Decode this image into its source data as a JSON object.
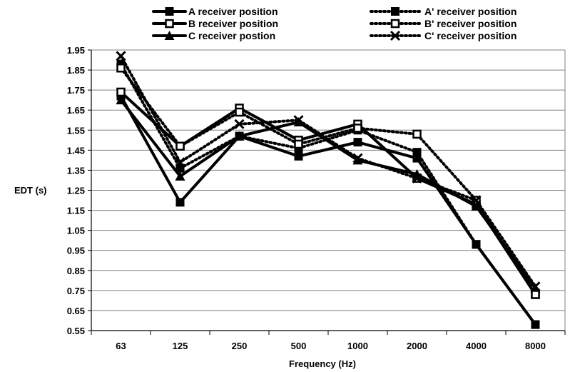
{
  "chart_data": {
    "type": "line",
    "xlabel": "Frequency (Hz)",
    "ylabel": "EDT (s)",
    "categories": [
      "63",
      "125",
      "250",
      "500",
      "1000",
      "2000",
      "4000",
      "8000"
    ],
    "ylim": [
      0.55,
      1.95
    ],
    "yticks": [
      "1.95",
      "1.85",
      "1.75",
      "1.65",
      "1.55",
      "1.45",
      "1.35",
      "1.25",
      "1.15",
      "1.05",
      "0.95",
      "0.85",
      "0.75",
      "0.65",
      "0.55"
    ],
    "grid": "vertical",
    "legend_position": "top",
    "series": [
      {
        "name": "A receiver position",
        "style": "solid",
        "marker": "square",
        "values": [
          1.72,
          1.19,
          1.52,
          1.42,
          1.49,
          1.41,
          0.98,
          0.58
        ]
      },
      {
        "name": "B receiver position",
        "style": "solid",
        "marker": "square-open",
        "values": [
          1.74,
          1.47,
          1.66,
          1.5,
          1.58,
          1.31,
          1.18,
          0.73
        ]
      },
      {
        "name": "C receiver postion",
        "style": "solid",
        "marker": "triangle",
        "values": [
          1.7,
          1.32,
          1.52,
          1.59,
          1.4,
          1.33,
          1.17,
          0.76
        ]
      },
      {
        "name": "A' receiver position",
        "style": "dotted",
        "marker": "square",
        "values": [
          1.88,
          1.36,
          1.52,
          1.46,
          1.55,
          1.44,
          0.98,
          0.58
        ]
      },
      {
        "name": "B' receiver position",
        "style": "dotted",
        "marker": "square-open",
        "values": [
          1.86,
          1.47,
          1.64,
          1.48,
          1.56,
          1.53,
          1.2,
          0.73
        ]
      },
      {
        "name": "C' receiver position",
        "style": "dotted",
        "marker": "x",
        "values": [
          1.92,
          1.39,
          1.58,
          1.6,
          1.41,
          1.31,
          1.2,
          0.77
        ]
      }
    ],
    "colors": {
      "line": "#000000",
      "grid": "#808080",
      "background": "#ffffff"
    }
  }
}
